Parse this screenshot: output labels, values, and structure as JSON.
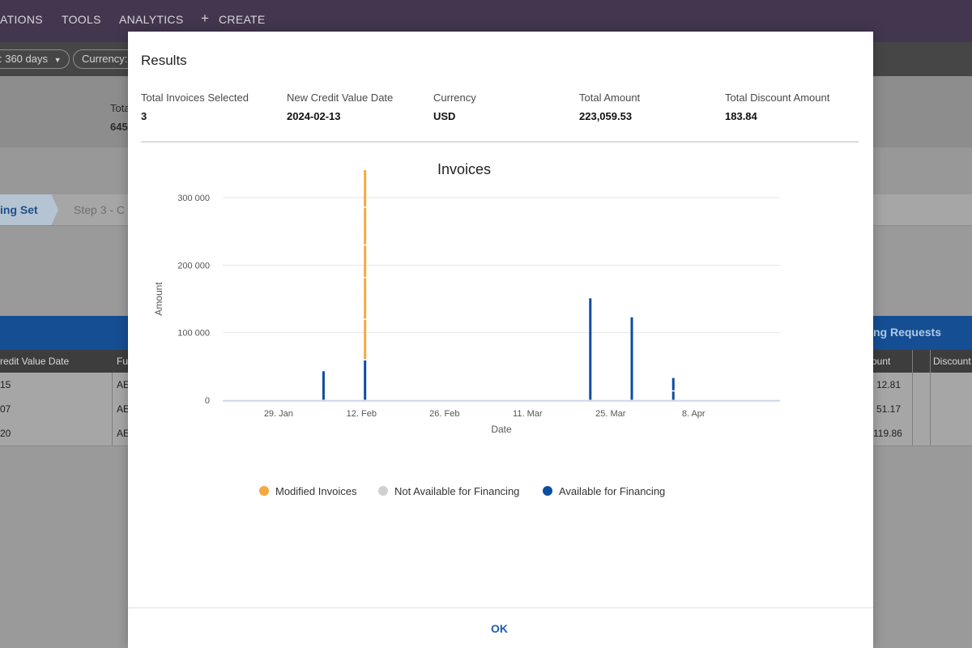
{
  "nav": {
    "items": [
      "ATIONS",
      "TOOLS",
      "ANALYTICS"
    ],
    "create_label": "CREATE"
  },
  "filters": {
    "period": ": 360 days",
    "currency": "Currency:"
  },
  "summary": {
    "label_partial": "Tota",
    "value_partial": "645"
  },
  "steps": {
    "active": "ing Set",
    "next": "Step 3 - C"
  },
  "table": {
    "bar_right_label": "cing Requests",
    "headers": [
      "redit Value Date",
      "Fu",
      "ount",
      "Discount"
    ],
    "rows": [
      {
        "date": "15",
        "fu": "AE",
        "amount": "12.81"
      },
      {
        "date": "07",
        "fu": "AE",
        "amount": "51.17"
      },
      {
        "date": "20",
        "fu": "AE",
        "amount": "119.86"
      }
    ]
  },
  "modal": {
    "title": "Results",
    "fields": [
      {
        "label": "Total Invoices Selected",
        "value": "3"
      },
      {
        "label": "New Credit Value Date",
        "value": "2024-02-13"
      },
      {
        "label": "Currency",
        "value": "USD"
      },
      {
        "label": "Total Amount",
        "value": "223,059.53"
      },
      {
        "label": "Total Discount Amount",
        "value": "183.84"
      }
    ],
    "ok_label": "OK"
  },
  "colors": {
    "modified": "#f7a83e",
    "not_available": "#d0d0d0",
    "available": "#0c4da2",
    "grid": "#e6e6e6"
  },
  "chart_data": {
    "type": "bar",
    "title": "Invoices",
    "xlabel": "Date",
    "ylabel": "Amount",
    "ylim": [
      0,
      300000
    ],
    "yticks": [
      0,
      100000,
      200000,
      300000
    ],
    "ytick_labels": [
      "0",
      "100 000",
      "200 000",
      "300 000"
    ],
    "xticks": [
      "2024-01-29",
      "2024-02-12",
      "2024-02-26",
      "2024-03-11",
      "2024-03-25",
      "2024-04-08"
    ],
    "xtick_labels": [
      "29. Jan",
      "12. Feb",
      "26. Feb",
      "11. Mar",
      "25. Mar",
      "8. Apr"
    ],
    "xlim": [
      "2024-01-20",
      "2024-04-23"
    ],
    "grid": true,
    "legend_position": "bottom",
    "series": [
      {
        "name": "Modified Invoices",
        "color": "#f7a83e",
        "points": [
          {
            "date": "2024-02-13",
            "segments": [
              60000,
              62000,
              48000,
              56000,
              56000
            ]
          }
        ]
      },
      {
        "name": "Not Available for Financing",
        "color": "#d0d0d0",
        "points": []
      },
      {
        "name": "Available for Financing",
        "color": "#0c4da2",
        "points": [
          {
            "date": "2024-02-06",
            "segments": [
              44000
            ]
          },
          {
            "date": "2024-02-13",
            "segments": [
              60000
            ]
          },
          {
            "date": "2024-03-22",
            "segments": [
              152000
            ]
          },
          {
            "date": "2024-03-29",
            "segments": [
              124000
            ]
          },
          {
            "date": "2024-04-05",
            "segments": [
              14000,
              20000
            ]
          }
        ]
      }
    ]
  }
}
